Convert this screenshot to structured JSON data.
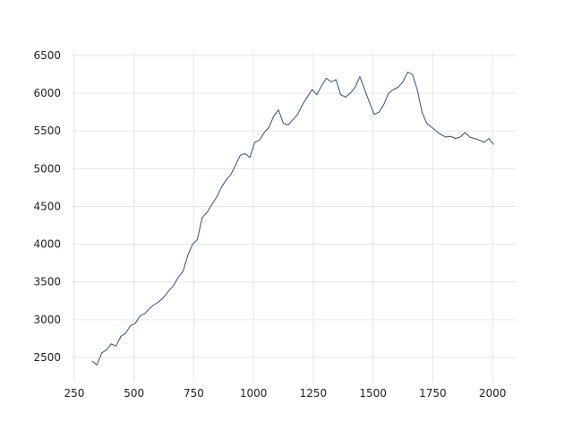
{
  "chart_data": {
    "type": "line",
    "color": "#34507a",
    "grid": true,
    "x": [
      325,
      345,
      365,
      385,
      405,
      425,
      445,
      465,
      485,
      505,
      525,
      545,
      565,
      585,
      605,
      625,
      645,
      665,
      685,
      705,
      725,
      745,
      765,
      785,
      805,
      825,
      845,
      865,
      885,
      905,
      925,
      945,
      965,
      985,
      1005,
      1025,
      1045,
      1065,
      1085,
      1105,
      1125,
      1145,
      1165,
      1185,
      1205,
      1225,
      1245,
      1265,
      1285,
      1305,
      1325,
      1345,
      1365,
      1385,
      1405,
      1425,
      1445,
      1465,
      1485,
      1505,
      1525,
      1545,
      1565,
      1585,
      1605,
      1625,
      1645,
      1665,
      1685,
      1705,
      1725,
      1745,
      1765,
      1785,
      1805,
      1825,
      1845,
      1865,
      1885,
      1905,
      1925,
      1945,
      1965,
      1985,
      2005
    ],
    "values": [
      2450,
      2400,
      2560,
      2600,
      2680,
      2650,
      2780,
      2820,
      2920,
      2950,
      3050,
      3080,
      3150,
      3200,
      3240,
      3300,
      3380,
      3450,
      3560,
      3640,
      3850,
      4000,
      4060,
      4350,
      4420,
      4520,
      4620,
      4750,
      4850,
      4920,
      5050,
      5180,
      5200,
      5150,
      5350,
      5380,
      5480,
      5550,
      5700,
      5780,
      5600,
      5580,
      5650,
      5720,
      5850,
      5950,
      6050,
      5980,
      6100,
      6200,
      6150,
      6180,
      5980,
      5950,
      6000,
      6080,
      6220,
      6050,
      5880,
      5720,
      5750,
      5850,
      6000,
      6050,
      6080,
      6150,
      6280,
      6250,
      6050,
      5750,
      5600,
      5550,
      5500,
      5450,
      5420,
      5430,
      5400,
      5420,
      5480,
      5420,
      5400,
      5380,
      5350,
      5400,
      5320
    ],
    "xlim": [
      239,
      2097
    ],
    "ylim": [
      2165,
      6552
    ],
    "xticks": [
      250,
      500,
      750,
      1000,
      1250,
      1500,
      1750,
      2000
    ],
    "yticks": [
      2500,
      3000,
      3500,
      4000,
      4500,
      5000,
      5500,
      6000,
      6500
    ]
  }
}
